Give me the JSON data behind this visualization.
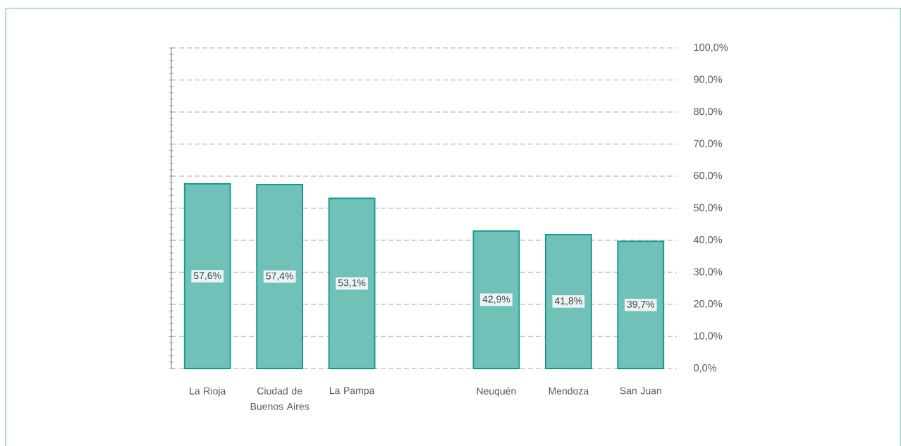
{
  "chart_data": {
    "type": "bar",
    "categories": [
      "La Rioja",
      "Ciudad de Buenos Aires",
      "La Pampa",
      null,
      "Neuquén",
      "Mendoza",
      "San Juan"
    ],
    "values": [
      57.6,
      57.4,
      53.1,
      null,
      42.9,
      41.8,
      39.7
    ],
    "value_labels": [
      "57,6%",
      "57,4%",
      "53,1%",
      null,
      "42,9%",
      "41,8%",
      "39,7%"
    ],
    "color": "#70c1b7",
    "ylim": [
      0,
      100
    ],
    "yticks": [
      {
        "value": 0,
        "label": null
      },
      {
        "value": 10,
        "label": null
      },
      {
        "value": 20,
        "label": null
      },
      {
        "value": 30,
        "label": null
      },
      {
        "value": 40,
        "label": null
      },
      {
        "value": 50,
        "label": null
      },
      {
        "value": 60,
        "label": null
      },
      {
        "value": 70,
        "label": null
      },
      {
        "value": 80,
        "label": null
      },
      {
        "value": 90,
        "label": null
      },
      {
        "value": 100,
        "label": null
      }
    ],
    "y2lim": [
      0,
      100
    ],
    "y2ticks": [
      {
        "value": 0,
        "label": "0,0%"
      },
      {
        "value": 10,
        "label": "10,0%"
      },
      {
        "value": 20,
        "label": "20,0%"
      },
      {
        "value": 30,
        "label": "30,0%"
      },
      {
        "value": 40,
        "label": "40,0%"
      },
      {
        "value": 50,
        "label": "50,0%"
      },
      {
        "value": 60,
        "label": "60,0%"
      },
      {
        "value": 70,
        "label": "70,0%"
      },
      {
        "value": 80,
        "label": "80,0%"
      },
      {
        "value": 90,
        "label": "90,0%"
      },
      {
        "value": 100,
        "label": "100,0%"
      }
    ],
    "grid": "y"
  }
}
